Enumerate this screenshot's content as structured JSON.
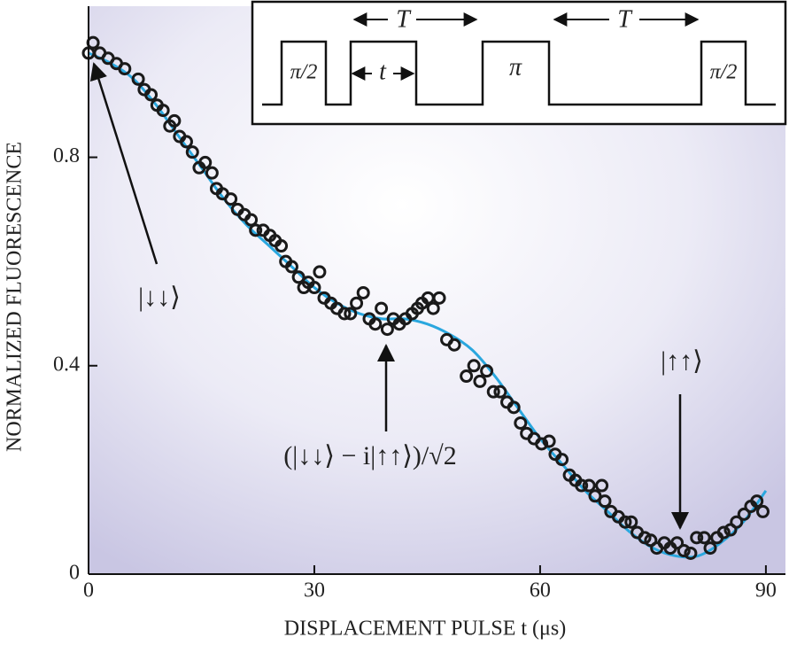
{
  "chart_data": {
    "type": "scatter",
    "x_label": "DISPLACEMENT PULSE t (μs)",
    "y_label": "NORMALIZED FLUORESCENCE",
    "xlim": [
      0,
      92.6
    ],
    "ylim": [
      0,
      1.09
    ],
    "xticks": [
      0,
      30,
      60,
      90
    ],
    "yticks": [
      0,
      0.4,
      0.8
    ],
    "points": {
      "color": "#1a1a1a",
      "x": [
        0,
        0.6,
        1.5,
        2.6,
        3.7,
        4.8,
        6.6,
        7.4,
        8.3,
        9.1,
        9.9,
        10.8,
        11.4,
        12.1,
        13.0,
        13.8,
        14.7,
        15.5,
        16.4,
        17.0,
        17.8,
        18.9,
        19.8,
        20.7,
        21.6,
        22.2,
        23.2,
        24.1,
        24.8,
        25.6,
        26.2,
        27.0,
        27.9,
        28.6,
        29.2,
        30.0,
        30.7,
        31.3,
        32.2,
        33.0,
        34.0,
        34.8,
        35.6,
        36.5,
        37.3,
        38.1,
        38.9,
        39.7,
        40.5,
        41.3,
        42.1,
        43.0,
        43.7,
        44.3,
        45.1,
        45.8,
        46.6,
        47.6,
        48.6,
        50.2,
        51.2,
        52.0,
        52.9,
        53.8,
        54.7,
        55.6,
        56.5,
        57.4,
        58.2,
        59.2,
        60.2,
        61.2,
        62.0,
        62.9,
        63.9,
        64.7,
        65.5,
        66.5,
        67.3,
        68.2,
        68.6,
        69.4,
        70.4,
        71.3,
        72.1,
        72.9,
        73.9,
        74.7,
        75.5,
        76.5,
        77.3,
        78.2,
        79.1,
        80.0,
        80.8,
        81.8,
        82.6,
        83.5,
        84.4,
        85.3,
        86.1,
        87.1,
        88.0,
        88.8,
        89.6
      ],
      "values": [
        1.0,
        1.02,
        1.0,
        0.99,
        0.98,
        0.97,
        0.95,
        0.93,
        0.92,
        0.9,
        0.89,
        0.86,
        0.87,
        0.84,
        0.83,
        0.81,
        0.78,
        0.79,
        0.77,
        0.74,
        0.73,
        0.72,
        0.7,
        0.69,
        0.68,
        0.66,
        0.66,
        0.65,
        0.64,
        0.63,
        0.6,
        0.59,
        0.57,
        0.55,
        0.56,
        0.55,
        0.58,
        0.53,
        0.52,
        0.51,
        0.5,
        0.5,
        0.52,
        0.54,
        0.49,
        0.48,
        0.51,
        0.47,
        0.49,
        0.48,
        0.49,
        0.5,
        0.51,
        0.52,
        0.53,
        0.51,
        0.53,
        0.45,
        0.44,
        0.38,
        0.4,
        0.37,
        0.39,
        0.35,
        0.35,
        0.33,
        0.32,
        0.29,
        0.27,
        0.26,
        0.25,
        0.255,
        0.23,
        0.22,
        0.19,
        0.18,
        0.17,
        0.17,
        0.15,
        0.17,
        0.14,
        0.12,
        0.11,
        0.1,
        0.1,
        0.08,
        0.07,
        0.065,
        0.05,
        0.06,
        0.05,
        0.06,
        0.045,
        0.04,
        0.07,
        0.07,
        0.05,
        0.07,
        0.08,
        0.085,
        0.1,
        0.115,
        0.13,
        0.14,
        0.12
      ]
    },
    "fit": {
      "color": "#2aa7de",
      "x": [
        0,
        3,
        6,
        9,
        12,
        15,
        18,
        21,
        24,
        27,
        30,
        33,
        36,
        39,
        42,
        45,
        48,
        51,
        54,
        57,
        60,
        63,
        66,
        69,
        72,
        75,
        78,
        81,
        84,
        87,
        90
      ],
      "values": [
        1.0,
        0.98,
        0.95,
        0.9,
        0.84,
        0.78,
        0.72,
        0.67,
        0.63,
        0.59,
        0.55,
        0.52,
        0.5,
        0.49,
        0.49,
        0.48,
        0.46,
        0.43,
        0.38,
        0.32,
        0.26,
        0.21,
        0.16,
        0.12,
        0.08,
        0.05,
        0.035,
        0.035,
        0.06,
        0.1,
        0.16
      ]
    },
    "annotations": [
      "|↓↓⟩",
      "(|↓↓⟩ − i|↑↑⟩)/√2",
      "|↑↑⟩"
    ],
    "inset": {
      "period": "T",
      "pulse_width": "t",
      "half_pulse": "π/2",
      "full_pulse": "π"
    }
  }
}
